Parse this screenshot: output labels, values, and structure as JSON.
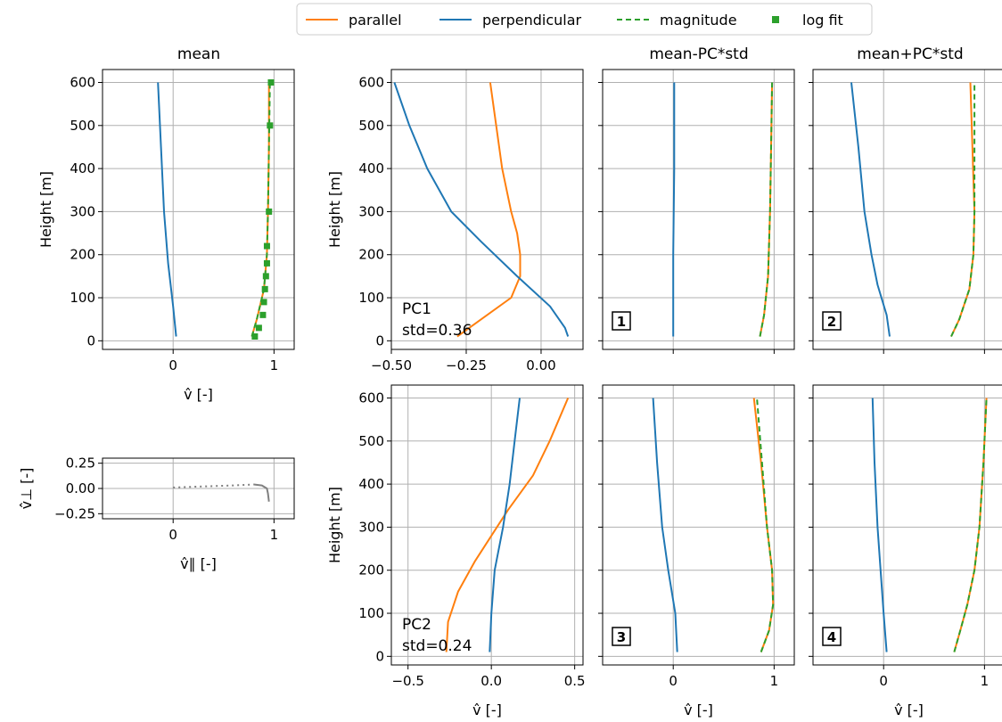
{
  "legend": {
    "placement": "top-center",
    "entries": [
      {
        "label": "parallel",
        "style": "line",
        "color": "#ff7f0e"
      },
      {
        "label": "perpendicular",
        "style": "line",
        "color": "#1f77b4"
      },
      {
        "label": "magnitude",
        "style": "dashed",
        "color": "#2ca02c"
      },
      {
        "label": "log fit",
        "style": "square-markers",
        "color": "#2ca02c"
      }
    ]
  },
  "colors": {
    "parallel": "#ff7f0e",
    "perpendicular": "#1f77b4",
    "magnitude": "#2ca02c",
    "hodograph": "#808080",
    "grid": "#b0b0b0"
  },
  "column_titles": {
    "mean": "mean",
    "minus": "mean-PC*std",
    "plus": "mean+PC*std"
  },
  "chart_data": [
    {
      "id": "mean",
      "type": "line",
      "grid": true,
      "xlim": [
        -0.7,
        1.2
      ],
      "ylim": [
        -20,
        630
      ],
      "xticks": [
        {
          "v": 0,
          "label": "0"
        },
        {
          "v": 1,
          "label": "1"
        }
      ],
      "yticks": [
        {
          "v": 0,
          "label": "0"
        },
        {
          "v": 100,
          "label": "100"
        },
        {
          "v": 200,
          "label": "200"
        },
        {
          "v": 300,
          "label": "300"
        },
        {
          "v": 400,
          "label": "400"
        },
        {
          "v": 500,
          "label": "500"
        },
        {
          "v": 600,
          "label": "600"
        }
      ],
      "xlabel": "v̂ [-]",
      "ylabel": "Height [m]",
      "series": [
        {
          "name": "perpendicular",
          "points": [
            [
              0.03,
              10
            ],
            [
              0.0,
              80
            ],
            [
              -0.05,
              180
            ],
            [
              -0.09,
              300
            ],
            [
              -0.12,
              450
            ],
            [
              -0.15,
              600
            ]
          ]
        },
        {
          "name": "parallel",
          "points": [
            [
              0.78,
              10
            ],
            [
              0.83,
              50
            ],
            [
              0.9,
              120
            ],
            [
              0.93,
              200
            ],
            [
              0.94,
              300
            ],
            [
              0.95,
              450
            ],
            [
              0.95,
              600
            ]
          ]
        },
        {
          "name": "magnitude",
          "points": [
            [
              0.78,
              10
            ],
            [
              0.83,
              50
            ],
            [
              0.9,
              120
            ],
            [
              0.93,
              200
            ],
            [
              0.94,
              300
            ],
            [
              0.95,
              450
            ],
            [
              0.96,
              600
            ]
          ]
        },
        {
          "name": "log fit",
          "points": [
            [
              0.81,
              10
            ],
            [
              0.85,
              30
            ],
            [
              0.89,
              60
            ],
            [
              0.9,
              90
            ],
            [
              0.91,
              120
            ],
            [
              0.92,
              150
            ],
            [
              0.93,
              180
            ],
            [
              0.93,
              220
            ],
            [
              0.95,
              300
            ],
            [
              0.96,
              500
            ],
            [
              0.97,
              600
            ]
          ]
        }
      ]
    },
    {
      "id": "hodograph",
      "type": "line",
      "grid": true,
      "xlim": [
        -0.7,
        1.2
      ],
      "ylim": [
        -0.3,
        0.3
      ],
      "xticks": [
        {
          "v": 0,
          "label": "0"
        },
        {
          "v": 1,
          "label": "1"
        }
      ],
      "yticks": [
        {
          "v": -0.25,
          "label": "−0.25"
        },
        {
          "v": 0,
          "label": "0.00"
        },
        {
          "v": 0.25,
          "label": "0.25"
        }
      ],
      "xlabel": "v̂∥ [-]",
      "ylabel": "v̂⊥ [-]",
      "series": [
        {
          "name": "hodograph-dotted",
          "style": "dotted",
          "points": [
            [
              0.0,
              0.01
            ],
            [
              0.3,
              0.02
            ],
            [
              0.6,
              0.03
            ],
            [
              0.8,
              0.04
            ]
          ]
        },
        {
          "name": "hodograph-solid",
          "style": "solid",
          "points": [
            [
              0.8,
              0.04
            ],
            [
              0.88,
              0.03
            ],
            [
              0.93,
              0.0
            ],
            [
              0.94,
              -0.05
            ],
            [
              0.95,
              -0.13
            ]
          ]
        }
      ]
    },
    {
      "id": "pc1",
      "type": "line",
      "grid": true,
      "xlim": [
        -0.5,
        0.14
      ],
      "ylim": [
        -20,
        630
      ],
      "xticks": [
        {
          "v": -0.5,
          "label": "−0.50"
        },
        {
          "v": -0.25,
          "label": "−0.25"
        },
        {
          "v": 0,
          "label": "0.00"
        }
      ],
      "yticks": [
        {
          "v": 0,
          "label": "0"
        },
        {
          "v": 100,
          "label": "100"
        },
        {
          "v": 200,
          "label": "200"
        },
        {
          "v": 300,
          "label": "300"
        },
        {
          "v": 400,
          "label": "400"
        },
        {
          "v": 500,
          "label": "500"
        },
        {
          "v": 600,
          "label": "600"
        }
      ],
      "xlabel": "",
      "ylabel": "Height [m]",
      "annotation": {
        "line1": "PC1",
        "line2": "std=0.36"
      },
      "series": [
        {
          "name": "parallel",
          "points": [
            [
              -0.28,
              10
            ],
            [
              -0.2,
              50
            ],
            [
              -0.1,
              100
            ],
            [
              -0.07,
              150
            ],
            [
              -0.07,
              200
            ],
            [
              -0.08,
              250
            ],
            [
              -0.1,
              300
            ],
            [
              -0.13,
              400
            ],
            [
              -0.15,
              500
            ],
            [
              -0.17,
              600
            ]
          ]
        },
        {
          "name": "perpendicular",
          "points": [
            [
              0.09,
              10
            ],
            [
              0.08,
              30
            ],
            [
              0.03,
              80
            ],
            [
              -0.08,
              150
            ],
            [
              -0.2,
              230
            ],
            [
              -0.3,
              300
            ],
            [
              -0.38,
              400
            ],
            [
              -0.44,
              500
            ],
            [
              -0.49,
              600
            ]
          ]
        }
      ]
    },
    {
      "id": "pc1-minus",
      "type": "line",
      "grid": true,
      "xlim": [
        -0.7,
        1.2
      ],
      "ylim": [
        -20,
        630
      ],
      "xticks": [],
      "yticks": [],
      "badge": "1",
      "series": [
        {
          "name": "perpendicular",
          "points": [
            [
              0.0,
              10
            ],
            [
              0.0,
              200
            ],
            [
              0.01,
              400
            ],
            [
              0.01,
              600
            ]
          ]
        },
        {
          "name": "parallel",
          "points": [
            [
              0.86,
              10
            ],
            [
              0.9,
              60
            ],
            [
              0.94,
              150
            ],
            [
              0.96,
              300
            ],
            [
              0.97,
              450
            ],
            [
              0.98,
              600
            ]
          ]
        },
        {
          "name": "magnitude",
          "points": [
            [
              0.86,
              10
            ],
            [
              0.9,
              60
            ],
            [
              0.94,
              150
            ],
            [
              0.96,
              300
            ],
            [
              0.97,
              450
            ],
            [
              0.98,
              600
            ]
          ]
        }
      ]
    },
    {
      "id": "pc1-plus",
      "type": "line",
      "grid": true,
      "xlim": [
        -0.7,
        1.2
      ],
      "ylim": [
        -20,
        630
      ],
      "xticks": [],
      "yticks": [],
      "badge": "2",
      "series": [
        {
          "name": "perpendicular",
          "points": [
            [
              0.06,
              10
            ],
            [
              0.03,
              60
            ],
            [
              -0.06,
              130
            ],
            [
              -0.12,
              200
            ],
            [
              -0.19,
              300
            ],
            [
              -0.25,
              450
            ],
            [
              -0.32,
              600
            ]
          ]
        },
        {
          "name": "parallel",
          "points": [
            [
              0.67,
              10
            ],
            [
              0.75,
              50
            ],
            [
              0.85,
              120
            ],
            [
              0.89,
              200
            ],
            [
              0.9,
              300
            ],
            [
              0.88,
              450
            ],
            [
              0.86,
              600
            ]
          ]
        },
        {
          "name": "magnitude",
          "points": [
            [
              0.67,
              10
            ],
            [
              0.75,
              50
            ],
            [
              0.85,
              120
            ],
            [
              0.89,
              200
            ],
            [
              0.9,
              300
            ],
            [
              0.9,
              450
            ],
            [
              0.9,
              600
            ]
          ]
        }
      ]
    },
    {
      "id": "pc2",
      "type": "line",
      "grid": true,
      "xlim": [
        -0.6,
        0.55
      ],
      "ylim": [
        -20,
        630
      ],
      "xticks": [
        {
          "v": -0.5,
          "label": "−0.5"
        },
        {
          "v": 0,
          "label": "0.0"
        },
        {
          "v": 0.5,
          "label": "0.5"
        }
      ],
      "yticks": [
        {
          "v": 0,
          "label": "0"
        },
        {
          "v": 100,
          "label": "100"
        },
        {
          "v": 200,
          "label": "200"
        },
        {
          "v": 300,
          "label": "300"
        },
        {
          "v": 400,
          "label": "400"
        },
        {
          "v": 500,
          "label": "500"
        },
        {
          "v": 600,
          "label": "600"
        }
      ],
      "xlabel": "v̂ [-]",
      "ylabel": "Height [m]",
      "annotation": {
        "line1": "PC2",
        "line2": "std=0.24"
      },
      "series": [
        {
          "name": "parallel",
          "points": [
            [
              -0.27,
              10
            ],
            [
              -0.26,
              80
            ],
            [
              -0.2,
              150
            ],
            [
              -0.1,
              220
            ],
            [
              0.0,
              280
            ],
            [
              0.1,
              340
            ],
            [
              0.25,
              420
            ],
            [
              0.35,
              500
            ],
            [
              0.46,
              600
            ]
          ]
        },
        {
          "name": "perpendicular",
          "points": [
            [
              -0.01,
              10
            ],
            [
              0.0,
              100
            ],
            [
              0.02,
              200
            ],
            [
              0.07,
              300
            ],
            [
              0.11,
              400
            ],
            [
              0.14,
              500
            ],
            [
              0.17,
              600
            ]
          ]
        }
      ]
    },
    {
      "id": "pc2-minus",
      "type": "line",
      "grid": true,
      "xlim": [
        -0.7,
        1.2
      ],
      "ylim": [
        -20,
        630
      ],
      "xticks": [
        {
          "v": 0,
          "label": "0"
        },
        {
          "v": 1,
          "label": "1"
        }
      ],
      "yticks": [],
      "xlabel": "v̂ [-]",
      "badge": "3",
      "series": [
        {
          "name": "perpendicular",
          "points": [
            [
              0.04,
              10
            ],
            [
              0.02,
              100
            ],
            [
              -0.05,
              200
            ],
            [
              -0.11,
              300
            ],
            [
              -0.16,
              450
            ],
            [
              -0.2,
              600
            ]
          ]
        },
        {
          "name": "parallel",
          "points": [
            [
              0.87,
              10
            ],
            [
              0.95,
              60
            ],
            [
              0.99,
              120
            ],
            [
              0.98,
              200
            ],
            [
              0.93,
              300
            ],
            [
              0.87,
              450
            ],
            [
              0.8,
              600
            ]
          ]
        },
        {
          "name": "magnitude",
          "points": [
            [
              0.87,
              10
            ],
            [
              0.95,
              60
            ],
            [
              0.99,
              120
            ],
            [
              0.98,
              200
            ],
            [
              0.93,
              300
            ],
            [
              0.88,
              450
            ],
            [
              0.83,
              600
            ]
          ]
        }
      ]
    },
    {
      "id": "pc2-plus",
      "type": "line",
      "grid": true,
      "xlim": [
        -0.7,
        1.2
      ],
      "ylim": [
        -20,
        630
      ],
      "xticks": [
        {
          "v": 0,
          "label": "0"
        },
        {
          "v": 1,
          "label": "1"
        }
      ],
      "yticks": [],
      "xlabel": "v̂ [-]",
      "badge": "4",
      "series": [
        {
          "name": "perpendicular",
          "points": [
            [
              0.03,
              10
            ],
            [
              0.0,
              100
            ],
            [
              -0.03,
              200
            ],
            [
              -0.06,
              300
            ],
            [
              -0.09,
              450
            ],
            [
              -0.11,
              600
            ]
          ]
        },
        {
          "name": "parallel",
          "points": [
            [
              0.7,
              10
            ],
            [
              0.76,
              60
            ],
            [
              0.83,
              120
            ],
            [
              0.9,
              200
            ],
            [
              0.95,
              300
            ],
            [
              0.99,
              450
            ],
            [
              1.02,
              600
            ]
          ]
        },
        {
          "name": "magnitude",
          "points": [
            [
              0.7,
              10
            ],
            [
              0.76,
              60
            ],
            [
              0.83,
              120
            ],
            [
              0.9,
              200
            ],
            [
              0.95,
              300
            ],
            [
              0.99,
              450
            ],
            [
              1.02,
              600
            ]
          ]
        }
      ]
    }
  ]
}
